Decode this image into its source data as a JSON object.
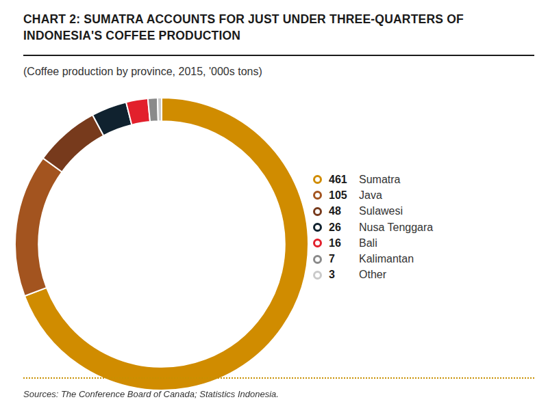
{
  "chart_data": {
    "type": "doughnut",
    "title": "CHART 2: SUMATRA ACCOUNTS FOR JUST UNDER THREE-QUARTERS OF INDONESIA'S COFFEE PRODUCTION",
    "subtitle": "(Coffee production by province, 2015, '000s tons)",
    "categories": [
      "Sumatra",
      "Java",
      "Sulawesi",
      "Nusa Tenggara",
      "Bali",
      "Kalimantan",
      "Other"
    ],
    "values": [
      461,
      105,
      48,
      26,
      16,
      7,
      3
    ],
    "colors": [
      "#d08c00",
      "#a3541f",
      "#773a1c",
      "#10222f",
      "#e2202c",
      "#8a8a8a",
      "#cacaca"
    ],
    "legend": "right",
    "source": "Sources: The Conference Board of Canada; Statistics Indonesia."
  }
}
